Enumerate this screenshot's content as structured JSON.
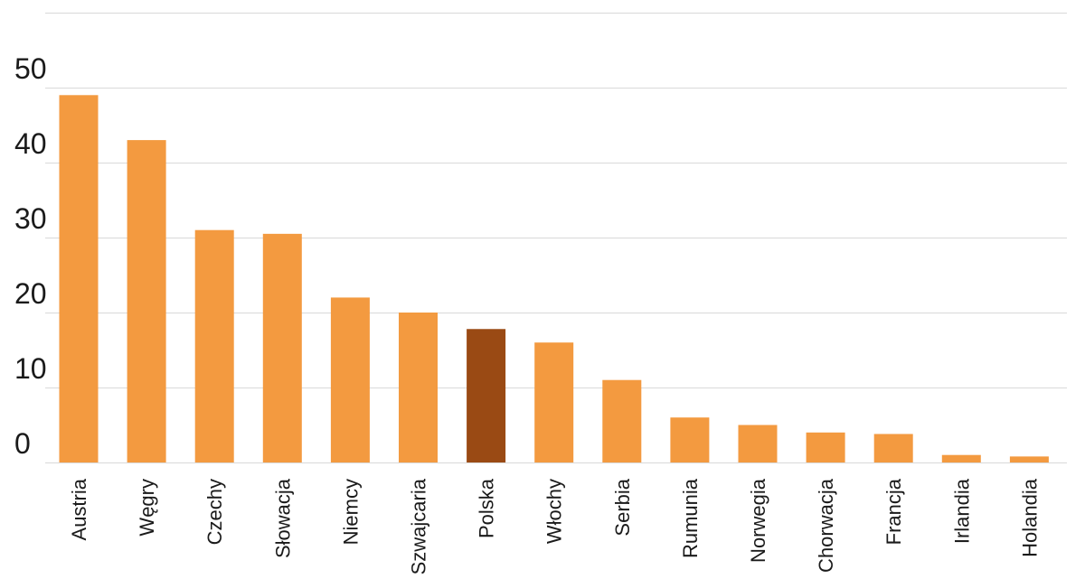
{
  "chart_data": {
    "type": "bar",
    "title": "",
    "xlabel": "",
    "ylabel": "",
    "categories": [
      "Austria",
      "Węgry",
      "Czechy",
      "Słowacja",
      "Niemcy",
      "Szwajcaria",
      "Polska",
      "Włochy",
      "Serbia",
      "Rumunia",
      "Norwegia",
      "Chorwacja",
      "Francja",
      "Irlandia",
      "Holandia"
    ],
    "values": [
      49,
      43,
      31,
      30.5,
      22,
      20,
      17.8,
      16,
      11,
      6,
      5,
      4,
      3.8,
      1,
      0.8
    ],
    "ylim": [
      0,
      60
    ],
    "yticks": [
      0,
      10,
      20,
      30,
      40,
      50
    ],
    "grid": true,
    "legend": "none",
    "colors": {
      "default": "#F39A40",
      "highlight": "#9A4A14",
      "grid": "#D9D9D9",
      "text": "#1A1A1A"
    },
    "highlight_category": "Polska"
  }
}
